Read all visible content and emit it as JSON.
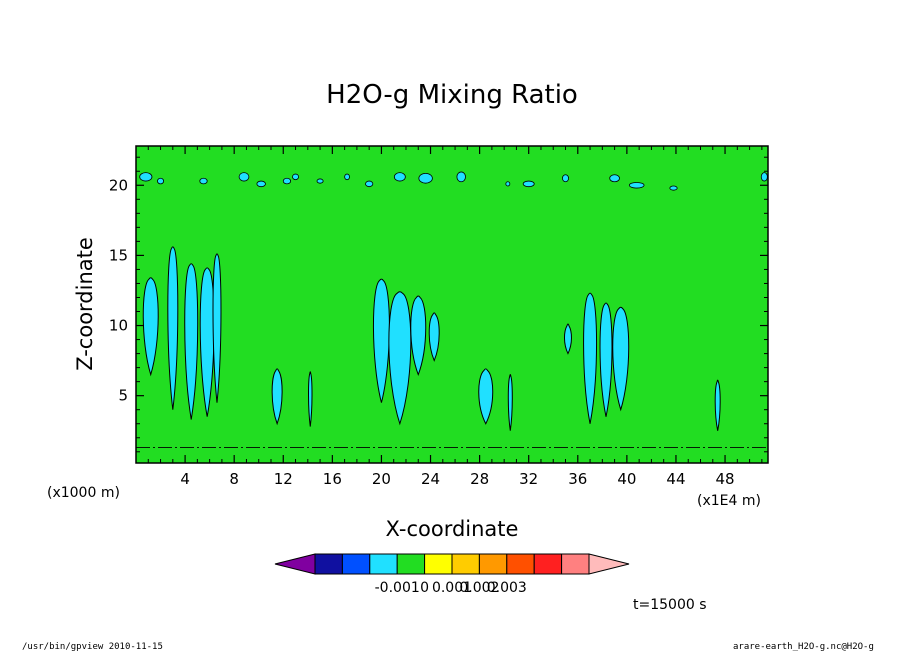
{
  "chart_data": {
    "type": "heatmap",
    "title": "H2O-g Mixing Ratio",
    "xlabel": "X-coordinate",
    "ylabel": "Z-coordinate",
    "x_axis": {
      "ticks": [
        4,
        8,
        12,
        16,
        20,
        24,
        28,
        32,
        36,
        40,
        44,
        48
      ],
      "tick_labels": [
        "4",
        "8",
        "12",
        "16",
        "20",
        "24",
        "28",
        "32",
        "36",
        "40",
        "44",
        "48"
      ],
      "range": [
        0,
        51.5
      ],
      "unit_left": "(x1000 m)",
      "unit_right": "(x1E4 m)"
    },
    "y_axis": {
      "ticks": [
        5,
        10,
        15,
        20
      ],
      "tick_labels": [
        "5",
        "10",
        "15",
        "20"
      ],
      "range": [
        0.2,
        22.8
      ]
    },
    "grid": false,
    "background_color": "#22dd22",
    "colorbar": {
      "colors": [
        "#8000a0",
        "#1010a0",
        "#0050ff",
        "#20e0ff",
        "#22dd22",
        "#ffff00",
        "#ffcc00",
        "#ff9900",
        "#ff5000",
        "#ff2020",
        "#ff8080",
        "#ffbbbb"
      ],
      "tick_labels": [
        "-0.001",
        "0",
        "0.001",
        "0.002",
        "0.003"
      ],
      "extends": "both"
    },
    "cyan_plumes": [
      {
        "x": 1.2,
        "z0": 6.5,
        "z1": 13.3,
        "w": 1.5
      },
      {
        "x": 3.0,
        "z0": 4.0,
        "z1": 15.5,
        "w": 1.0
      },
      {
        "x": 4.5,
        "z0": 3.3,
        "z1": 14.3,
        "w": 1.3
      },
      {
        "x": 5.8,
        "z0": 3.5,
        "z1": 14.0,
        "w": 1.4
      },
      {
        "x": 6.6,
        "z0": 4.5,
        "z1": 15.0,
        "w": 0.8
      },
      {
        "x": 11.5,
        "z0": 3.0,
        "z1": 6.8,
        "w": 1.0
      },
      {
        "x": 14.2,
        "z0": 2.8,
        "z1": 6.6,
        "w": 0.35
      },
      {
        "x": 20.0,
        "z0": 4.5,
        "z1": 13.2,
        "w": 1.6
      },
      {
        "x": 21.5,
        "z0": 3.0,
        "z1": 12.3,
        "w": 2.2
      },
      {
        "x": 23.0,
        "z0": 6.5,
        "z1": 12.0,
        "w": 1.5
      },
      {
        "x": 24.3,
        "z0": 7.5,
        "z1": 10.8,
        "w": 1.0
      },
      {
        "x": 28.5,
        "z0": 3.0,
        "z1": 6.8,
        "w": 1.4
      },
      {
        "x": 30.5,
        "z0": 2.5,
        "z1": 6.4,
        "w": 0.4
      },
      {
        "x": 35.2,
        "z0": 8.0,
        "z1": 10.0,
        "w": 0.7
      },
      {
        "x": 37.0,
        "z0": 3.0,
        "z1": 12.2,
        "w": 1.3
      },
      {
        "x": 38.3,
        "z0": 3.5,
        "z1": 11.5,
        "w": 1.2
      },
      {
        "x": 39.5,
        "z0": 4.0,
        "z1": 11.2,
        "w": 1.6
      },
      {
        "x": 47.4,
        "z0": 2.5,
        "z1": 6.0,
        "w": 0.5
      }
    ],
    "cyan_patches_upper": [
      [
        0.8,
        20.6,
        1.0,
        0.6
      ],
      [
        2.0,
        20.3,
        0.5,
        0.4
      ],
      [
        5.5,
        20.3,
        0.6,
        0.4
      ],
      [
        8.8,
        20.6,
        0.8,
        0.6
      ],
      [
        10.2,
        20.1,
        0.7,
        0.4
      ],
      [
        12.3,
        20.3,
        0.6,
        0.4
      ],
      [
        13.0,
        20.6,
        0.5,
        0.4
      ],
      [
        15.0,
        20.3,
        0.5,
        0.3
      ],
      [
        17.2,
        20.6,
        0.4,
        0.4
      ],
      [
        19.0,
        20.1,
        0.6,
        0.4
      ],
      [
        21.5,
        20.6,
        0.9,
        0.6
      ],
      [
        23.6,
        20.5,
        1.1,
        0.7
      ],
      [
        26.5,
        20.6,
        0.7,
        0.7
      ],
      [
        30.3,
        20.1,
        0.3,
        0.3
      ],
      [
        32.0,
        20.1,
        0.9,
        0.4
      ],
      [
        35.0,
        20.5,
        0.5,
        0.5
      ],
      [
        39.0,
        20.5,
        0.8,
        0.5
      ],
      [
        40.8,
        20.0,
        1.2,
        0.4
      ],
      [
        43.8,
        19.8,
        0.6,
        0.3
      ],
      [
        51.2,
        20.6,
        0.5,
        0.6
      ]
    ],
    "annotation": "t=15000 s"
  },
  "footer": {
    "left": "/usr/bin/gpview   2010-11-15",
    "right": "arare-earth_H2O-g.nc@H2O-g"
  }
}
